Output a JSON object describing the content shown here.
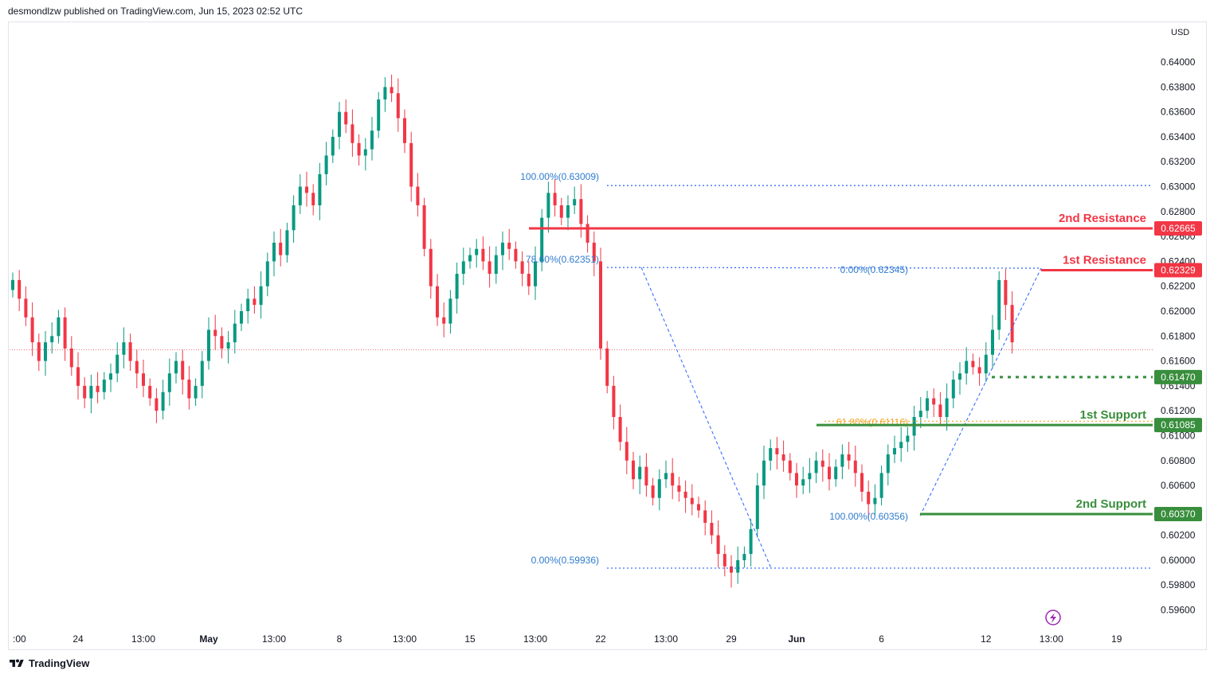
{
  "header": {
    "text": "desmondlzw published on TradingView.com, Jun 15, 2023 02:52 UTC"
  },
  "footer": {
    "brand": "TradingView"
  },
  "chart_data": {
    "type": "candlestick",
    "currency": "USD",
    "y_ticks": [
      "0.64000",
      "0.63800",
      "0.63600",
      "0.63400",
      "0.63200",
      "0.63000",
      "0.62800",
      "0.62600",
      "0.62400",
      "0.62200",
      "0.62000",
      "0.61800",
      "0.61600",
      "0.61400",
      "0.61200",
      "0.61000",
      "0.60800",
      "0.60600",
      "0.60400",
      "0.60200",
      "0.60000",
      "0.59800",
      "0.59600"
    ],
    "y_tick_values": [
      0.64,
      0.638,
      0.636,
      0.634,
      0.632,
      0.63,
      0.628,
      0.626,
      0.624,
      0.622,
      0.62,
      0.618,
      0.616,
      0.614,
      0.612,
      0.61,
      0.608,
      0.606,
      0.604,
      0.602,
      0.6,
      0.598,
      0.596
    ],
    "ylim": [
      0.5945,
      0.6432
    ],
    "x_ticks": [
      {
        "label": ":00",
        "bold": false,
        "idx": 0
      },
      {
        "label": "24",
        "bold": false,
        "idx": 10
      },
      {
        "label": "13:00",
        "bold": false,
        "idx": 20
      },
      {
        "label": "May",
        "bold": true,
        "idx": 30
      },
      {
        "label": "13:00",
        "bold": false,
        "idx": 40
      },
      {
        "label": "8",
        "bold": false,
        "idx": 50
      },
      {
        "label": "13:00",
        "bold": false,
        "idx": 60
      },
      {
        "label": "15",
        "bold": false,
        "idx": 70
      },
      {
        "label": "13:00",
        "bold": false,
        "idx": 80
      },
      {
        "label": "22",
        "bold": false,
        "idx": 90
      },
      {
        "label": "13:00",
        "bold": false,
        "idx": 100
      },
      {
        "label": "29",
        "bold": false,
        "idx": 110
      },
      {
        "label": "Jun",
        "bold": true,
        "idx": 120
      },
      {
        "label": "6",
        "bold": false,
        "idx": 133
      },
      {
        "label": "12",
        "bold": false,
        "idx": 149
      },
      {
        "label": "13:00",
        "bold": false,
        "idx": 159
      },
      {
        "label": "19",
        "bold": false,
        "idx": 169
      }
    ],
    "close_series": [
      0.6225,
      0.621,
      0.6195,
      0.6175,
      0.616,
      0.6175,
      0.618,
      0.6195,
      0.617,
      0.6155,
      0.614,
      0.613,
      0.614,
      0.6135,
      0.6145,
      0.615,
      0.6165,
      0.6175,
      0.616,
      0.615,
      0.614,
      0.613,
      0.612,
      0.6135,
      0.615,
      0.616,
      0.6145,
      0.613,
      0.614,
      0.616,
      0.6185,
      0.618,
      0.617,
      0.6175,
      0.619,
      0.62,
      0.621,
      0.6205,
      0.622,
      0.624,
      0.6255,
      0.6245,
      0.6265,
      0.6285,
      0.63,
      0.6295,
      0.6285,
      0.631,
      0.6325,
      0.634,
      0.636,
      0.635,
      0.6335,
      0.6325,
      0.633,
      0.6345,
      0.637,
      0.638,
      0.6375,
      0.6355,
      0.6335,
      0.63,
      0.6285,
      0.625,
      0.622,
      0.6195,
      0.619,
      0.621,
      0.623,
      0.624,
      0.6245,
      0.625,
      0.624,
      0.623,
      0.6245,
      0.6255,
      0.625,
      0.624,
      0.623,
      0.622,
      0.624,
      0.6275,
      0.6295,
      0.6285,
      0.6275,
      0.6285,
      0.629,
      0.627,
      0.6255,
      0.624,
      0.617,
      0.614,
      0.6115,
      0.6095,
      0.608,
      0.6065,
      0.6075,
      0.606,
      0.605,
      0.6065,
      0.607,
      0.606,
      0.6055,
      0.605,
      0.6045,
      0.604,
      0.603,
      0.602,
      0.6005,
      0.5995,
      0.599,
      0.6,
      0.6005,
      0.6025,
      0.606,
      0.608,
      0.609,
      0.6085,
      0.608,
      0.607,
      0.606,
      0.6065,
      0.607,
      0.608,
      0.6075,
      0.6065,
      0.6075,
      0.6085,
      0.608,
      0.607,
      0.6055,
      0.6045,
      0.605,
      0.607,
      0.6085,
      0.609,
      0.6095,
      0.61,
      0.6115,
      0.612,
      0.613,
      0.6125,
      0.6115,
      0.613,
      0.6145,
      0.615,
      0.616,
      0.6155,
      0.615,
      0.6165,
      0.6185,
      0.6225,
      0.6205,
      0.6175
    ],
    "annotations": {
      "resistance_2": {
        "label": "2nd Resistance",
        "value": 0.62665,
        "value_label": "0.62665",
        "color": "#f23645"
      },
      "resistance_1": {
        "label": "1st Resistance",
        "value": 0.62329,
        "value_label": "0.62329",
        "color": "#f23645"
      },
      "pivot": {
        "value": 0.6147,
        "value_label": "0.61470",
        "color": "#388e3c"
      },
      "support_1": {
        "label": "1st Support",
        "value": 0.61085,
        "value_label": "0.61085",
        "color": "#388e3c"
      },
      "support_2": {
        "label": "2nd Support",
        "value": 0.6037,
        "value_label": "0.60370",
        "color": "#388e3c"
      }
    },
    "fib_labels": {
      "fib_a_top": {
        "text": "100.00%(0.63009)",
        "value": 0.63009
      },
      "fib_a_mid": {
        "text": "78.60%(0.62351)",
        "value": 0.62351
      },
      "fib_a_bot": {
        "text": "0.00%(0.59936)",
        "value": 0.59936
      },
      "fib_b_top": {
        "text": "0.00%(0.62345)",
        "value": 0.62345
      },
      "fib_b_mid": {
        "text": "61.80%(0.61116)",
        "value": 0.61116
      },
      "fib_b_bot": {
        "text": "100.00%(0.60356)",
        "value": 0.60356
      }
    },
    "last_price": 0.6169,
    "colors": {
      "up": "#089981",
      "down": "#f23645",
      "fib": "#2962ff",
      "fib_text": "#2e7bcf",
      "fib_618": "#f5a623"
    }
  }
}
